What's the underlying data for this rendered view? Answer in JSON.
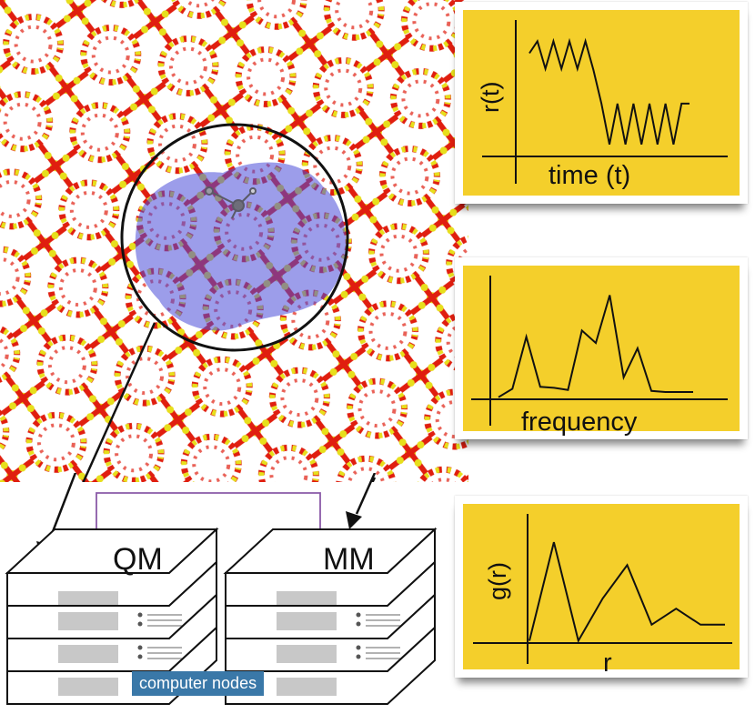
{
  "colors": {
    "plot_bg": "#f4cf2b",
    "atom_si": "#e7df1c",
    "atom_o": "#e01e0f",
    "qm_region": "#4b4cd8",
    "badge_bg": "#3a78a8",
    "link_line": "#8a5aa8"
  },
  "plots": {
    "rt": {
      "ylabel": "r(t)",
      "xlabel": "time (t)"
    },
    "freq": {
      "xlabel": "frequency"
    },
    "gr": {
      "ylabel": "g(r)",
      "xlabel": "r"
    }
  },
  "servers": {
    "qm_label": "QM",
    "mm_label": "MM",
    "badge": "computer nodes"
  },
  "chart_data": [
    {
      "type": "line",
      "title": "",
      "ylabel": "r(t)",
      "xlabel": "time (t)",
      "x": [
        0,
        1,
        2,
        3,
        4,
        5,
        6,
        7,
        8,
        9,
        10,
        11,
        12,
        13,
        14,
        15,
        16,
        17,
        18,
        19,
        20
      ],
      "values": [
        8.6,
        9.6,
        7.3,
        9.6,
        7.3,
        9.6,
        7.3,
        9.6,
        7.2,
        4.4,
        1.0,
        4.4,
        1.0,
        4.4,
        1.0,
        4.4,
        1.0,
        4.4,
        1.0,
        4.4,
        4.4
      ],
      "ylim": [
        0,
        10
      ]
    },
    {
      "type": "line",
      "title": "",
      "xlabel": "frequency",
      "x": [
        0,
        1,
        2,
        3,
        4,
        5,
        6,
        7,
        8,
        9,
        10,
        11,
        12,
        13,
        14
      ],
      "values": [
        0.2,
        1.0,
        6.0,
        1.2,
        1.1,
        0.9,
        6.6,
        5.4,
        10.0,
        2.1,
        4.9,
        0.8,
        0.7,
        0.7,
        0.7
      ],
      "ylim": [
        0,
        11
      ]
    },
    {
      "type": "line",
      "title": "",
      "ylabel": "g(r)",
      "xlabel": "r",
      "x": [
        0,
        1,
        2,
        3,
        4,
        5,
        6,
        7,
        8
      ],
      "values": [
        0.2,
        8.8,
        0.2,
        3.9,
        6.8,
        1.6,
        3.0,
        1.6,
        1.6
      ],
      "ylim": [
        0,
        10
      ]
    }
  ]
}
